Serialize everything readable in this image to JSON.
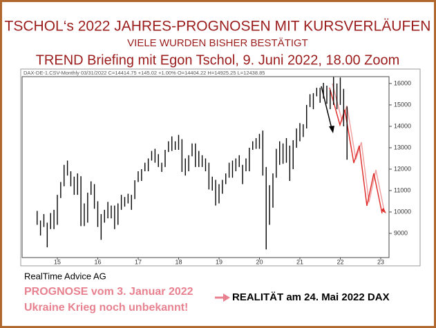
{
  "title": "TSCHOL‘s 2022 JAHRES-PROGNOSEN MIT KURSVERLÄUFEN",
  "subtitle": "VIELE WURDEN BISHER BESTÄTIGT",
  "event": "TREND Briefing mit Egon Tschol, 9. Juni 2022, 18.00 Zoom",
  "chart_data": {
    "type": "ohlc",
    "header": "DAX-DE-1.CSV-Monthly   03/31/2022   C=14414.75  +145.02  +1.00%   O=14404.22   H=14925.25   L=12438.85",
    "color": "#000000",
    "categories": [
      null,
      null,
      null,
      null,
      null,
      null,
      "15",
      null,
      null,
      null,
      null,
      null,
      null,
      null,
      null,
      null,
      null,
      null,
      "16",
      null,
      null,
      null,
      null,
      null,
      null,
      null,
      null,
      null,
      null,
      null,
      "17",
      null,
      null,
      null,
      null,
      null,
      null,
      null,
      null,
      null,
      null,
      null,
      "18",
      null,
      null,
      null,
      null,
      null,
      null,
      null,
      null,
      null,
      null,
      null,
      "19",
      null,
      null,
      null,
      null,
      null,
      null,
      null,
      null,
      null,
      null,
      null,
      "20",
      null,
      null,
      null,
      null,
      null,
      null,
      null,
      null,
      null,
      null,
      null,
      "21",
      null,
      null,
      null,
      null,
      null,
      null,
      null,
      null,
      null,
      null,
      null,
      "22",
      null,
      null,
      null,
      null,
      null,
      null,
      null,
      null,
      null,
      null,
      null,
      "23"
    ],
    "high": [
      10050,
      9600,
      9900,
      9500,
      9950,
      10100,
      10800,
      11400,
      12200,
      12400,
      11900,
      11650,
      11800,
      11670,
      10400,
      10900,
      11430,
      11300,
      10500,
      9900,
      10100,
      10470,
      10300,
      10300,
      10400,
      10800,
      10700,
      10850,
      10800,
      11480,
      11900,
      12000,
      12300,
      12500,
      12850,
      12950,
      12700,
      12300,
      12900,
      13300,
      13530,
      13300,
      13600,
      13400,
      12500,
      12650,
      13200,
      13200,
      12850,
      12650,
      12500,
      12300,
      11650,
      11500,
      11300,
      11500,
      11800,
      12300,
      12400,
      12500,
      12650,
      12200,
      12500,
      13000,
      13300,
      13450,
      13650,
      13800,
      12100,
      11250,
      11800,
      12950,
      13300,
      13200,
      13450,
      13100,
      13350,
      13900,
      14150,
      14100,
      15000,
      15500,
      15550,
      15800,
      15800,
      16030,
      15900,
      15700,
      16300,
      16000,
      16280,
      15750,
      14925,
      null,
      null,
      null,
      null,
      null,
      null,
      null,
      null,
      null,
      null
    ],
    "low": [
      9400,
      8900,
      9300,
      8350,
      9200,
      9200,
      9400,
      10650,
      11200,
      11700,
      11200,
      10800,
      10800,
      9340,
      9340,
      9500,
      10800,
      10150,
      9300,
      8700,
      9500,
      9700,
      9700,
      9200,
      9400,
      10100,
      10250,
      10400,
      10100,
      10600,
      11400,
      11450,
      11900,
      11900,
      12400,
      12300,
      12100,
      11870,
      12100,
      12800,
      12850,
      12900,
      12900,
      11870,
      11700,
      11900,
      12600,
      12100,
      12100,
      12100,
      11900,
      11050,
      11000,
      10300,
      10400,
      10850,
      11300,
      11600,
      11600,
      11900,
      12100,
      11300,
      11900,
      11900,
      12900,
      12950,
      12950,
      11700,
      8250,
      9400,
      10200,
      11600,
      12200,
      12250,
      12300,
      11450,
      12000,
      13000,
      13300,
      13500,
      13900,
      14900,
      14800,
      15400,
      15100,
      15300,
      15050,
      14800,
      15000,
      14800,
      15000,
      14000,
      12440,
      null,
      null,
      null,
      null,
      null,
      null,
      null,
      null,
      null,
      null
    ],
    "ylim": [
      7870,
      16320
    ],
    "yticks": [
      9000,
      10000,
      11000,
      12000,
      13000,
      14000,
      15000,
      16000
    ]
  },
  "footer": {
    "source": "RealTime Advice AG",
    "forecast": [
      "PROGNOSE vom 3. Januar 2022",
      "Ukraine Krieg noch unbekannt!"
    ],
    "reality": "REALITÄT am 24. Mai 2022 DAX"
  }
}
